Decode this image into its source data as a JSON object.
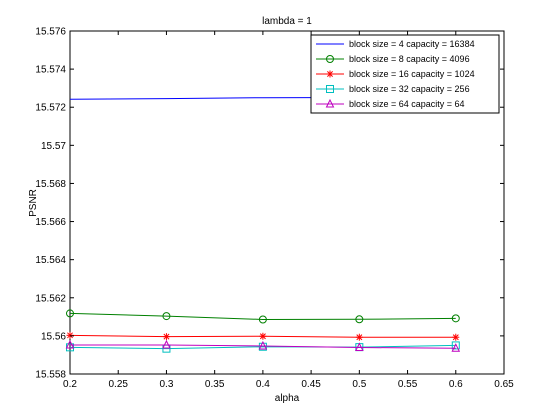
{
  "chart_data": {
    "type": "line",
    "title": "lambda = 1",
    "xlabel": "alpha",
    "ylabel": "PSNR",
    "xlim": [
      0.2,
      0.65
    ],
    "ylim": [
      15.558,
      15.576
    ],
    "x_ticks": [
      "0.2",
      "0.25",
      "0.3",
      "0.35",
      "0.4",
      "0.45",
      "0.5",
      "0.55",
      "0.6",
      "0.65"
    ],
    "y_ticks": [
      "15.558",
      "15.56",
      "15.562",
      "15.564",
      "15.566",
      "15.568",
      "15.57",
      "15.572",
      "15.574",
      "15.576"
    ],
    "grid": false,
    "legend_position": "top-right",
    "x": [
      0.2,
      0.3,
      0.4,
      0.5,
      0.6
    ],
    "series": [
      {
        "name": "block size = 4 capacity = 16384",
        "color": "#0000ff",
        "marker": "none",
        "values": [
          15.57242,
          15.57245,
          15.5725,
          15.57251,
          15.57251
        ]
      },
      {
        "name": "block size = 8 capacity = 4096",
        "color": "#008000",
        "marker": "circle",
        "values": [
          15.56118,
          15.56104,
          15.56086,
          15.56087,
          15.56092
        ]
      },
      {
        "name": "block size = 16 capacity = 1024",
        "color": "#ff0000",
        "marker": "star",
        "values": [
          15.56003,
          15.55996,
          15.55998,
          15.55993,
          15.55993
        ]
      },
      {
        "name": "block size = 32 capacity = 256",
        "color": "#00bfbf",
        "marker": "square",
        "values": [
          15.5594,
          15.55933,
          15.55943,
          15.55941,
          15.5595
        ]
      },
      {
        "name": "block size = 64 capacity = 64",
        "color": "#bf00bf",
        "marker": "triangle",
        "values": [
          15.55952,
          15.55952,
          15.55947,
          15.55939,
          15.55935
        ]
      }
    ]
  }
}
